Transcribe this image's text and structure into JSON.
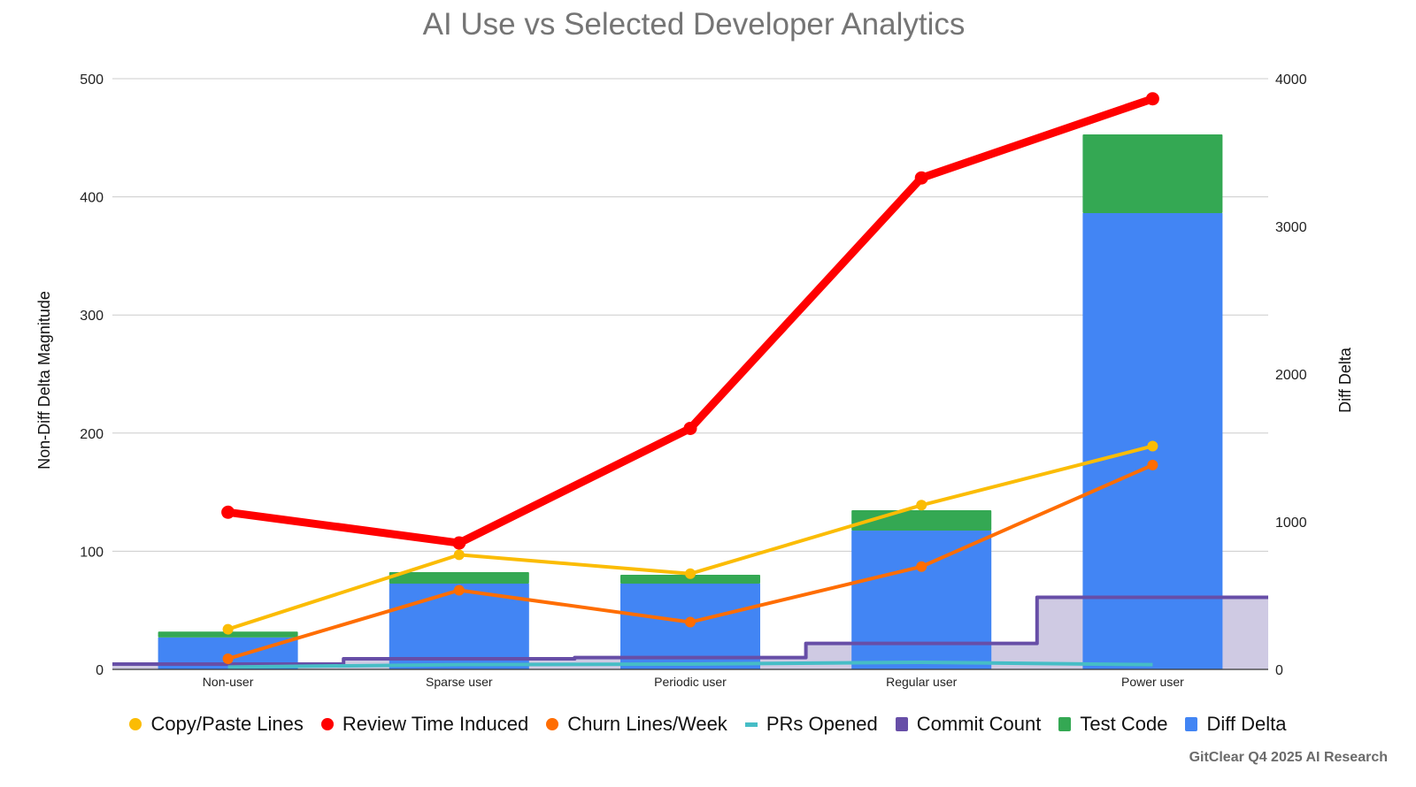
{
  "title": "AI Use vs Selected Developer Analytics",
  "credit": "GitClear Q4 2025 AI Research",
  "legend": [
    {
      "label": "Copy/Paste Lines",
      "color": "#fbbc04",
      "shape": "dot"
    },
    {
      "label": "Review Time Induced",
      "color": "#ff0000",
      "shape": "dot"
    },
    {
      "label": "Churn Lines/Week",
      "color": "#ff6d01",
      "shape": "dot"
    },
    {
      "label": "PRs Opened",
      "color": "#46bdc6",
      "shape": "dash"
    },
    {
      "label": "Commit Count",
      "color": "#674ea7",
      "shape": "square"
    },
    {
      "label": "Test Code",
      "color": "#34a853",
      "shape": "square"
    },
    {
      "label": "Diff Delta",
      "color": "#4285f4",
      "shape": "square"
    }
  ],
  "chart_data": {
    "type": "combo",
    "title": "AI Use vs Selected Developer Analytics",
    "categories": [
      "Non-user",
      "Sparse user",
      "Periodic user",
      "Regular user",
      "Power user"
    ],
    "ylabel": "Non-Diff Delta Magnitude",
    "ylabel_right": "Diff Delta",
    "ylim": [
      0,
      500
    ],
    "ylim_right": [
      0,
      4000
    ],
    "yticks": [
      "0",
      "100",
      "200",
      "300",
      "400",
      "500"
    ],
    "yticks_right": [
      "0",
      "1000",
      "2000",
      "3000",
      "4000"
    ],
    "grid": true,
    "legend_position": "bottom",
    "series": [
      {
        "name": "Copy/Paste Lines",
        "type": "line",
        "axis": "left",
        "color": "#fbbc04",
        "values": [
          34,
          97,
          81,
          139,
          189
        ]
      },
      {
        "name": "Review Time Induced",
        "type": "line",
        "axis": "left",
        "color": "#ff0000",
        "values": [
          133,
          107,
          204,
          416,
          483
        ]
      },
      {
        "name": "Churn Lines/Week",
        "type": "line",
        "axis": "left",
        "color": "#ff6d01",
        "values": [
          9,
          67,
          40,
          87,
          173
        ]
      },
      {
        "name": "PRs Opened",
        "type": "line",
        "axis": "left",
        "color": "#46bdc6",
        "values": [
          2,
          4,
          4.5,
          6,
          4
        ]
      },
      {
        "name": "Commit Count",
        "type": "stepped-area",
        "axis": "left",
        "color": "#674ea7",
        "values": [
          4.5,
          9,
          10,
          22,
          61
        ]
      },
      {
        "name": "Test Code",
        "type": "stacked-bar",
        "axis": "right",
        "color": "#34a853",
        "values": [
          40,
          78,
          60,
          138,
          533
        ]
      },
      {
        "name": "Diff Delta",
        "type": "stacked-bar",
        "axis": "right",
        "color": "#4285f4",
        "values": [
          216,
          581,
          581,
          940,
          3090
        ]
      }
    ]
  }
}
